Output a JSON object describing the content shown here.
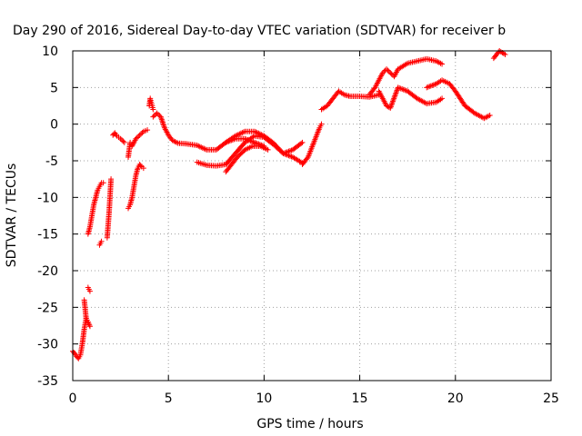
{
  "chart_data": {
    "type": "scatter",
    "title": "Day 290 of 2016, Sidereal Day-to-day VTEC variation (SDTVAR) for receiver b",
    "xlabel": "GPS time / hours",
    "ylabel": "SDTVAR / TECUs",
    "xlim": [
      0,
      25
    ],
    "ylim": [
      -35,
      10
    ],
    "xticks": [
      "0",
      "5",
      "10",
      "15",
      "20",
      "25"
    ],
    "yticks": [
      "-35",
      "-30",
      "-25",
      "-20",
      "-15",
      "-10",
      "-5",
      "0",
      "5",
      "10"
    ],
    "grid": true,
    "marker": "+",
    "color": "#ff0000",
    "series": [
      {
        "x": [
          0.0,
          0.1,
          0.2,
          0.3,
          0.4,
          0.5,
          0.6,
          0.7
        ],
        "y": [
          -31.0,
          -31.3,
          -31.7,
          -32.0,
          -31.5,
          -30.0,
          -28.0,
          -26.5
        ]
      },
      {
        "x": [
          0.6,
          0.7,
          0.8,
          0.9
        ],
        "y": [
          -24.0,
          -26.5,
          -27.0,
          -27.6
        ]
      },
      {
        "x": [
          0.8,
          0.9
        ],
        "y": [
          -22.3,
          -22.8
        ]
      },
      {
        "x": [
          0.8,
          0.9,
          1.0,
          1.1,
          1.2,
          1.3,
          1.4,
          1.5,
          1.6
        ],
        "y": [
          -15.0,
          -14.0,
          -12.5,
          -11.0,
          -10.0,
          -9.0,
          -8.5,
          -8.0,
          -8.0
        ]
      },
      {
        "x": [
          1.4,
          1.5
        ],
        "y": [
          -16.5,
          -16.0
        ]
      },
      {
        "x": [
          1.8,
          1.9,
          2.0
        ],
        "y": [
          -15.5,
          -12.0,
          -7.5
        ]
      },
      {
        "x": [
          2.1,
          2.2,
          2.3,
          2.4,
          2.5,
          2.7
        ],
        "y": [
          -1.5,
          -1.2,
          -1.6,
          -1.8,
          -2.0,
          -2.5
        ]
      },
      {
        "x": [
          2.9,
          3.0
        ],
        "y": [
          -4.5,
          -2.5
        ]
      },
      {
        "x": [
          2.9,
          3.0,
          3.1,
          3.2,
          3.3,
          3.4,
          3.5,
          3.6,
          3.7
        ],
        "y": [
          -11.5,
          -11.0,
          -10.0,
          -8.5,
          -7.0,
          -6.0,
          -5.5,
          -5.8,
          -6.0
        ]
      },
      {
        "x": [
          3.1,
          3.3,
          3.5,
          3.7,
          3.9
        ],
        "y": [
          -3.0,
          -2.0,
          -1.5,
          -1.0,
          -0.8
        ]
      },
      {
        "x": [
          4.0,
          4.05,
          4.1,
          4.15,
          4.2
        ],
        "y": [
          2.5,
          3.5,
          3.0,
          2.5,
          2.0
        ]
      },
      {
        "x": [
          4.2,
          4.4,
          4.6,
          4.8,
          5.0,
          5.2,
          5.5,
          6.0,
          6.5,
          7.0,
          7.5,
          8.0,
          8.5,
          9.0,
          9.5,
          10.0,
          10.5,
          11.0,
          11.5,
          12.0
        ],
        "y": [
          1.0,
          1.5,
          1.0,
          -0.5,
          -1.5,
          -2.2,
          -2.6,
          -2.7,
          -2.9,
          -3.5,
          -3.5,
          -2.5,
          -1.6,
          -1.0,
          -1.0,
          -1.6,
          -2.6,
          -4.0,
          -3.5,
          -2.5
        ]
      },
      {
        "x": [
          6.5,
          7.0,
          7.5,
          8.0,
          8.5,
          9.0,
          9.5,
          10.0,
          10.5,
          11.0,
          11.5,
          12.0
        ],
        "y": [
          -5.2,
          -5.6,
          -5.7,
          -5.5,
          -4.0,
          -2.5,
          -1.6,
          -1.8,
          -2.8,
          -4.0,
          -4.5,
          -5.3
        ]
      },
      {
        "x": [
          8.0,
          8.3,
          8.6,
          9.0,
          9.4,
          9.8,
          10.2
        ],
        "y": [
          -6.5,
          -5.5,
          -4.5,
          -3.5,
          -3.0,
          -3.0,
          -3.5
        ]
      },
      {
        "x": [
          8.0,
          8.5,
          9.0,
          9.5,
          10.0
        ],
        "y": [
          -2.5,
          -2.0,
          -2.0,
          -2.5,
          -3.0
        ]
      },
      {
        "x": [
          12.0,
          12.3,
          12.6,
          12.9,
          13.0
        ],
        "y": [
          -5.5,
          -4.5,
          -2.5,
          -0.5,
          0.0
        ]
      },
      {
        "x": [
          13.0,
          13.3,
          13.6,
          13.9,
          14.2,
          14.5,
          15.0,
          15.5,
          16.0
        ],
        "y": [
          2.0,
          2.5,
          3.5,
          4.5,
          4.0,
          3.8,
          3.8,
          3.7,
          4.0
        ]
      },
      {
        "x": [
          15.5,
          15.8,
          16.0,
          16.2,
          16.4,
          16.6,
          16.8,
          17.0,
          17.5,
          18.0,
          18.5,
          19.0,
          19.3
        ],
        "y": [
          4.0,
          5.0,
          6.0,
          7.0,
          7.5,
          7.0,
          6.5,
          7.5,
          8.3,
          8.6,
          8.9,
          8.6,
          8.2
        ]
      },
      {
        "x": [
          16.0,
          16.2,
          16.4,
          16.6,
          17.0,
          17.5,
          18.0,
          18.5,
          19.0,
          19.3
        ],
        "y": [
          4.5,
          3.5,
          2.5,
          2.2,
          5.0,
          4.5,
          3.5,
          2.8,
          3.0,
          3.5
        ]
      },
      {
        "x": [
          18.5,
          19.0,
          19.3,
          19.7,
          20.0,
          20.5,
          21.0,
          21.5,
          21.8
        ],
        "y": [
          5.0,
          5.5,
          6.0,
          5.5,
          4.5,
          2.5,
          1.5,
          0.8,
          1.2
        ]
      },
      {
        "x": [
          22.0,
          22.3,
          22.6
        ],
        "y": [
          9.0,
          10.0,
          9.5
        ]
      }
    ]
  }
}
